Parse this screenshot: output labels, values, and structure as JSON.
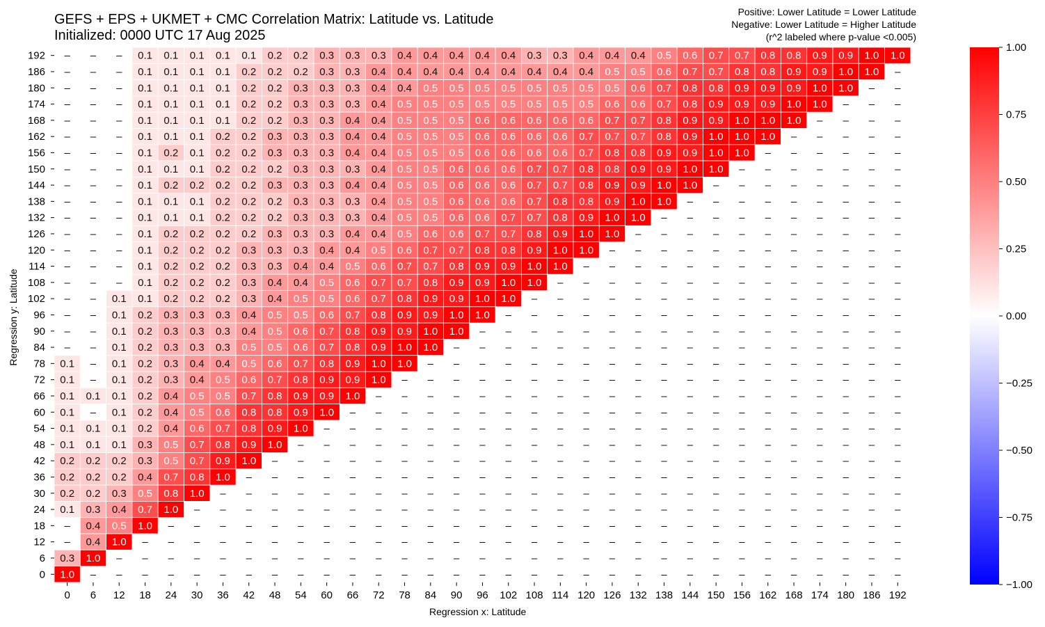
{
  "chart_data": {
    "type": "heatmap",
    "title": "GEFS + EPS + UKMET + CMC Correlation Matrix: Latitude vs. Latitude",
    "subtitle": "Initialized: 0000 UTC 17 Aug 2025",
    "notes": [
      "Positive: Lower Latitude = Lower Latitude",
      "Negative: Lower Latitude = Higher Latitude",
      "(r^2 labeled where p-value <0.005)"
    ],
    "xlabel": "Regression x: Latitude",
    "ylabel": "Regression y: Latitude",
    "x_categories": [
      "0",
      "6",
      "12",
      "18",
      "24",
      "30",
      "36",
      "42",
      "48",
      "54",
      "60",
      "66",
      "72",
      "78",
      "84",
      "90",
      "96",
      "102",
      "108",
      "114",
      "120",
      "126",
      "132",
      "138",
      "144",
      "150",
      "156",
      "162",
      "168",
      "174",
      "180",
      "186",
      "192"
    ],
    "y_categories": [
      "192",
      "186",
      "180",
      "174",
      "168",
      "162",
      "156",
      "150",
      "144",
      "138",
      "132",
      "126",
      "120",
      "114",
      "108",
      "102",
      "96",
      "90",
      "84",
      "78",
      "72",
      "66",
      "60",
      "54",
      "48",
      "42",
      "36",
      "30",
      "24",
      "18",
      "12",
      "6",
      "0"
    ],
    "rows": [
      "––– 0.1 0.1 0.1 0.1 0.1 0.2 0.2 0.3 0.3 0.3 0.4 0.4 0.4 0.4 0.4 0.3 0.3 0.4 0.4 0.4 0.5 0.6 0.7 0.7 0.8 0.8 0.9 0.9 1.0 1.0",
      "––– 0.1 0.1 0.1 0.1 0.2 0.2 0.2 0.3 0.3 0.4 0.4 0.4 0.4 0.4 0.4 0.4 0.4 0.4 0.5 0.5 0.6 0.7 0.7 0.8 0.8 0.9 0.9 1.0 1.0 –",
      "––– 0.1 0.1 0.1 0.1 0.2 0.2 0.3 0.3 0.3 0.4 0.4 0.5 0.5 0.5 0.5 0.5 0.5 0.5 0.5 0.6 0.7 0.8 0.8 0.9 0.9 0.9 1.0 1.0 ––",
      "––– 0.1 0.1 0.1 0.1 0.2 0.2 0.3 0.3 0.3 0.4 0.5 0.5 0.5 0.5 0.5 0.5 0.5 0.5 0.6 0.6 0.7 0.8 0.9 0.9 0.9 1.0 1.0 –––",
      "––– 0.1 0.1 0.1 0.1 0.2 0.2 0.3 0.3 0.4 0.4 0.5 0.5 0.5 0.6 0.6 0.6 0.6 0.6 0.7 0.7 0.8 0.9 0.9 1.0 1.0 1.0 ––––",
      "––– 0.1 0.1 0.1 0.2 0.2 0.3 0.3 0.3 0.4 0.4 0.5 0.5 0.5 0.6 0.6 0.6 0.6 0.7 0.7 0.7 0.8 0.9 1.0 1.0 1.0 –––––",
      "––– 0.1 0.2 0.1 0.2 0.2 0.3 0.3 0.3 0.4 0.4 0.5 0.5 0.5 0.6 0.6 0.6 0.6 0.7 0.8 0.8 0.9 0.9 1.0 1.0 ––––––",
      "––– 0.1 0.1 0.1 0.2 0.2 0.2 0.3 0.3 0.3 0.4 0.5 0.5 0.6 0.6 0.6 0.7 0.7 0.8 0.8 0.9 0.9 1.0 1.0 –––––––",
      "––– 0.1 0.2 0.2 0.2 0.2 0.3 0.3 0.3 0.4 0.4 0.5 0.5 0.6 0.6 0.6 0.7 0.7 0.8 0.9 0.9 1.0 1.0 ––––––––",
      "––– 0.1 0.1 0.1 0.2 0.2 0.2 0.3 0.3 0.3 0.4 0.5 0.5 0.6 0.6 0.6 0.7 0.8 0.8 0.9 1.0 1.0 –––––––––",
      "––– 0.1 0.1 0.1 0.2 0.2 0.2 0.3 0.3 0.3 0.4 0.5 0.5 0.6 0.6 0.7 0.7 0.8 0.9 1.0 1.0 ––––––––––",
      "––– 0.1 0.2 0.2 0.2 0.2 0.3 0.3 0.3 0.4 0.4 0.5 0.6 0.6 0.7 0.7 0.8 0.9 1.0 1.0 –––––––––––",
      "––– 0.1 0.2 0.2 0.2 0.3 0.3 0.3 0.4 0.4 0.5 0.6 0.7 0.7 0.8 0.8 0.9 1.0 1.0 ––––––––––––",
      "––– 0.1 0.2 0.2 0.2 0.3 0.3 0.4 0.4 0.5 0.6 0.7 0.7 0.8 0.9 0.9 1.0 1.0 –––––––––––––",
      "––– 0.1 0.2 0.2 0.2 0.3 0.4 0.4 0.5 0.6 0.7 0.7 0.8 0.9 0.9 1.0 1.0 ––––––––––––––",
      "–– 0.1 0.1 0.2 0.2 0.2 0.3 0.4 0.5 0.5 0.6 0.7 0.8 0.9 0.9 1.0 1.0 –––––––––––––––",
      "–– 0.1 0.2 0.3 0.3 0.3 0.4 0.5 0.5 0.6 0.7 0.8 0.9 0.9 1.0 1.0 ––––––––––––––––",
      "–– 0.1 0.2 0.3 0.3 0.3 0.4 0.5 0.6 0.7 0.8 0.9 0.9 1.0 1.0 –––––––––––––––––",
      "–– 0.1 0.2 0.3 0.3 0.3 0.5 0.5 0.6 0.7 0.8 0.9 1.0 1.0 ––––––––––––––––––",
      "0.1 – 0.1 0.2 0.3 0.4 0.4 0.5 0.6 0.7 0.8 0.9 1.0 1.0 –––––––––––––––––––",
      "0.1 – 0.1 0.2 0.3 0.4 0.5 0.6 0.7 0.8 0.9 0.9 1.0 ––––––––––––––––––––",
      "0.1 0.1 0.1 0.2 0.4 0.5 0.5 0.7 0.8 0.9 0.9 1.0 –––––––––––––––––––––",
      "0.1 – 0.1 0.2 0.4 0.5 0.6 0.8 0.8 0.9 1.0 ––––––––––––––––––––––",
      "0.1 0.1 0.1 0.2 0.4 0.6 0.7 0.8 0.9 1.0 –––––––––––––––––––––––",
      "0.1 0.1 0.1 0.3 0.5 0.7 0.8 0.9 1.0 ––––––––––––––––––––––––",
      "0.2 0.2 0.2 0.3 0.5 0.7 0.9 1.0 –––––––––––––––––––––––––",
      "0.2 0.2 0.2 0.4 0.7 0.8 1.0 ––––––––––––––––––––––––––",
      "0.2 0.2 0.3 0.5 0.8 1.0 –––––––––––––––––––––––––––",
      "0.1 0.3 0.4 0.7 1.0 ––––––––––––––––––––––––––––",
      "– 0.4 0.5 1.0 –––––––––––––––––––––––––––––",
      "– 0.4 1.0 ––––––––––––––––––––––––––––––",
      "0.3 1.0 –––––––––––––––––––––––––––––––",
      "1.0 ––––––––––––––––––––––––––––––––"
    ],
    "colorbar": {
      "min": -1.0,
      "max": 1.0,
      "ticks": [
        "1.00",
        "0.75",
        "0.50",
        "0.25",
        "0.00",
        "−0.25",
        "−0.50",
        "−0.75",
        "−1.00"
      ],
      "colors": [
        "#0000ff",
        "#ffffff",
        "#ff0000"
      ]
    }
  }
}
